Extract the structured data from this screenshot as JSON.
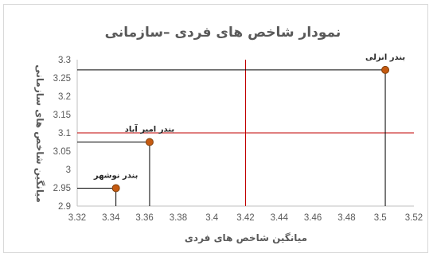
{
  "chart_data": {
    "type": "scatter",
    "title": "نمودار شاخص های فردی –سازمانی",
    "xlabel": "میانگین شاخص های فردی",
    "ylabel": "میانگین شاخص های سازمانی",
    "xlim": [
      3.32,
      3.52
    ],
    "ylim": [
      2.9,
      3.3
    ],
    "xticks": [
      "3.32",
      "3.34",
      "3.36",
      "3.38",
      "3.4",
      "3.42",
      "3.44",
      "3.46",
      "3.48",
      "3.5",
      "3.52"
    ],
    "yticks": [
      "2.9",
      "2.95",
      "3",
      "3.05",
      "3.1",
      "3.15",
      "3.2",
      "3.25",
      "3.3"
    ],
    "grid": false,
    "reference_lines": {
      "x": 3.42,
      "y": 3.1,
      "color": "#c00000"
    },
    "marker_color": "#c55a11",
    "points": [
      {
        "label": "بندر انزلی",
        "x": 3.503,
        "y": 3.272
      },
      {
        "label": "بندر امیر آباد",
        "x": 3.363,
        "y": 3.075
      },
      {
        "label": "بندر نوشهر",
        "x": 3.343,
        "y": 2.949
      }
    ]
  }
}
